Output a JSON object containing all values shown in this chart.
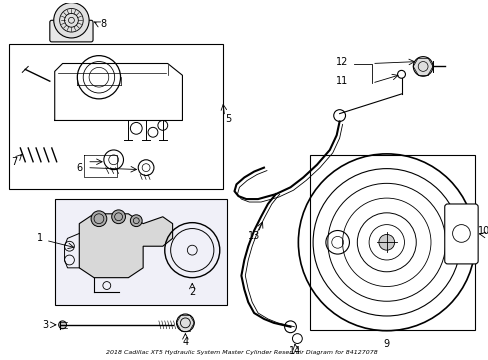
{
  "title": "2018 Cadillac XT5 Hydraulic System Master Cylinder Reservoir Diagram for 84127078",
  "background_color": "#ffffff",
  "line_color": "#000000",
  "figsize": [
    4.89,
    3.6
  ],
  "dpi": 100
}
